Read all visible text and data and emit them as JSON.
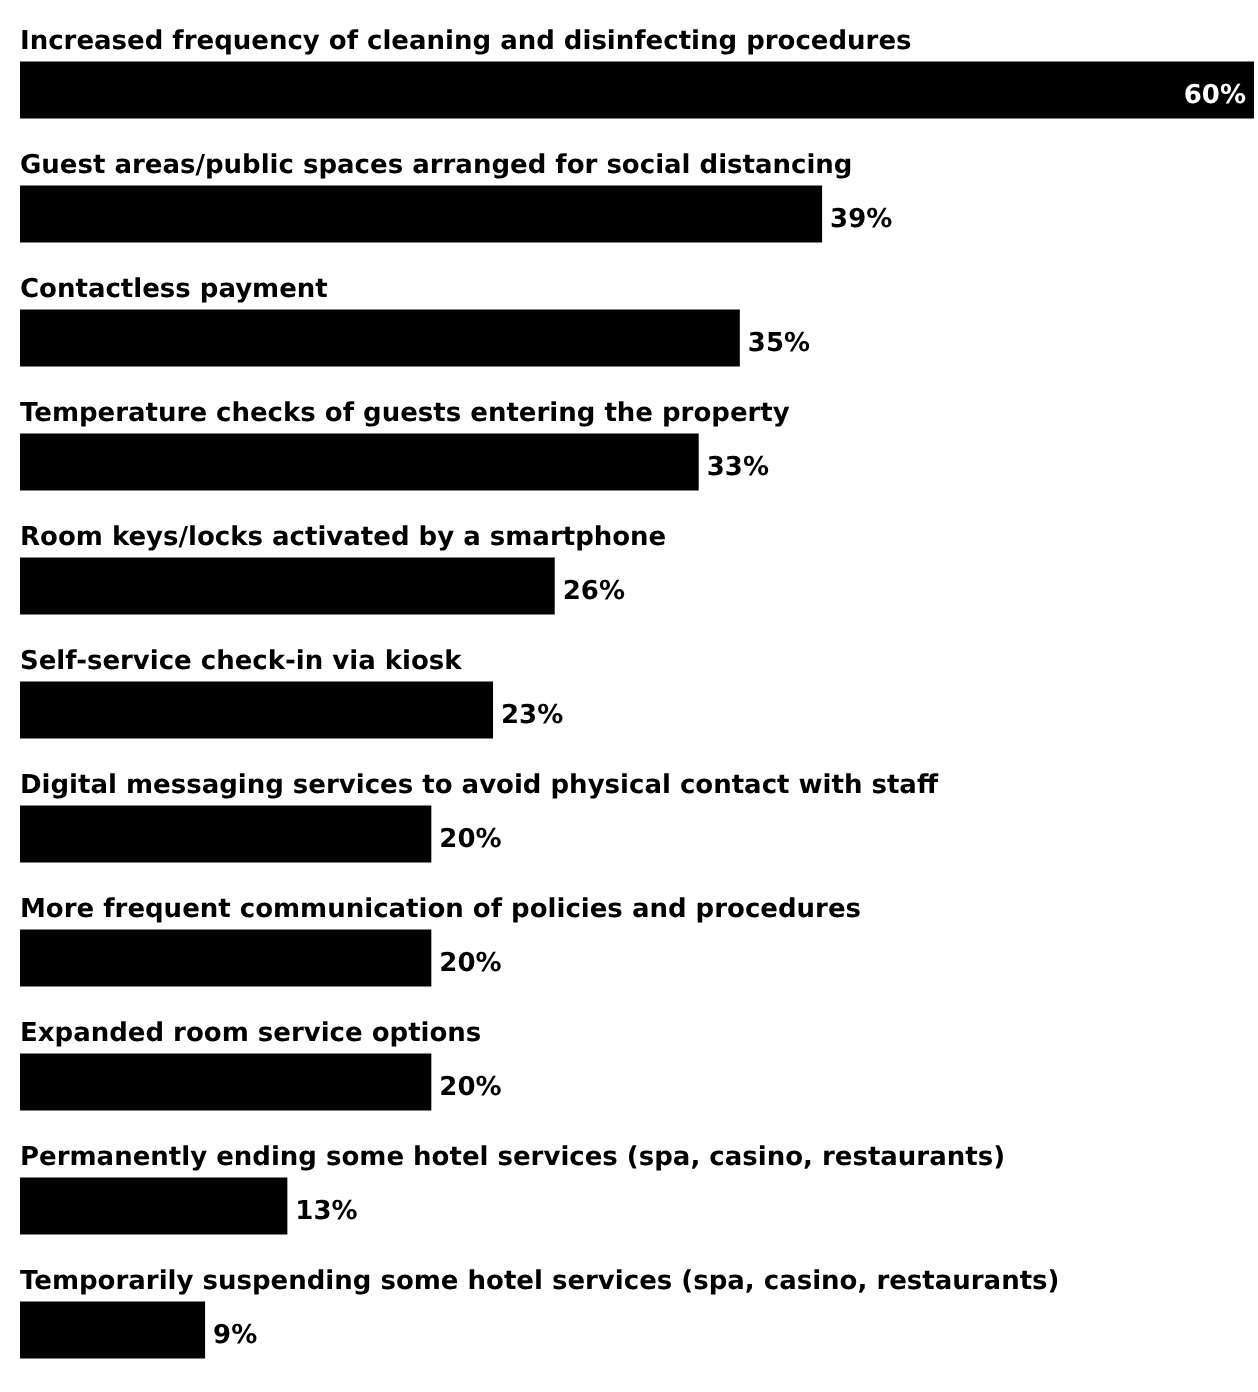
{
  "chart_data": {
    "type": "bar",
    "orientation": "horizontal",
    "categories": [
      "Increased frequency of cleaning and disinfecting procedures",
      "Guest areas/public spaces arranged for social distancing",
      "Contactless payment",
      "Temperature checks of guests entering the property",
      "Room keys/locks activated by a smartphone",
      "Self-service check-in via kiosk",
      "Digital messaging services to avoid physical contact with staff",
      "More frequent communication of policies and procedures",
      "Expanded room service options",
      "Permanently ending some hotel services (spa, casino, restaurants)",
      "Temporarily suspending some hotel services (spa, casino, restaurants)"
    ],
    "values": [
      60,
      39,
      35,
      33,
      26,
      23,
      20,
      20,
      20,
      13,
      9
    ],
    "value_labels": [
      "60%",
      "39%",
      "35%",
      "33%",
      "26%",
      "23%",
      "20%",
      "20%",
      "20%",
      "13%",
      "9%"
    ],
    "color": "#000000"
  }
}
